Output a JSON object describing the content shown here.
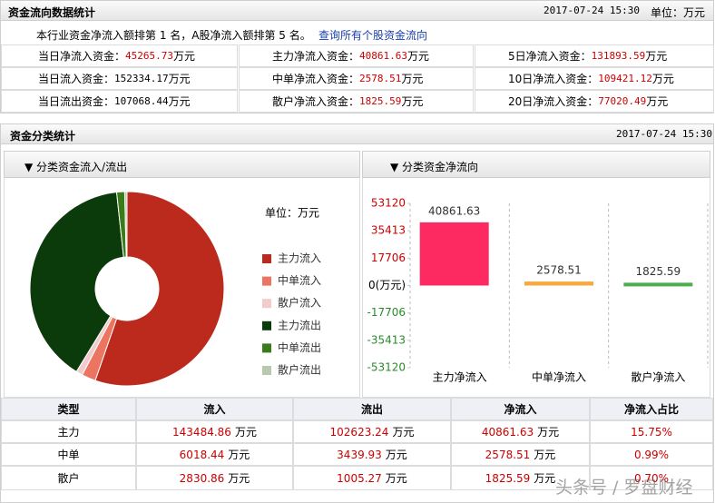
{
  "header": {
    "title": "资金流向数据统计",
    "date": "2017-07-24 15:30",
    "unit": "单位：万元"
  },
  "rank": {
    "text": "本行业资金净流入额排第 1 名，A股净流入额排第 5 名。",
    "link": "查询所有个股资金流向"
  },
  "stats": {
    "unit": "万元",
    "items": [
      {
        "label": "当日净流入资金：",
        "value": "45265.73",
        "color": "#cc0000"
      },
      {
        "label": "主力净流入资金：",
        "value": "40861.63",
        "color": "#cc0000"
      },
      {
        "label": "5日净流入资金：",
        "value": "131893.59",
        "color": "#cc0000"
      },
      {
        "label": "当日流入资金：",
        "value": "152334.17",
        "color": "#000000"
      },
      {
        "label": "中单净流入资金：",
        "value": "2578.51",
        "color": "#cc0000"
      },
      {
        "label": "10日净流入资金：",
        "value": "109421.12",
        "color": "#cc0000"
      },
      {
        "label": "当日流出资金：",
        "value": "107068.44",
        "color": "#000000"
      },
      {
        "label": "散户净流入资金：",
        "value": "1825.59",
        "color": "#cc0000"
      },
      {
        "label": "20日净流入资金：",
        "value": "77020.49",
        "color": "#cc0000"
      }
    ]
  },
  "section": {
    "title": "资金分类统计",
    "date": "2017-07-24 15:30"
  },
  "chart_data": [
    {
      "type": "pie",
      "title": "▼ 分类资金流入/流出",
      "unit_label": "单位：万元",
      "categories": [
        "主力流入",
        "中单流入",
        "散户流入",
        "主力流出",
        "中单流出",
        "散户流出"
      ],
      "values": [
        143484.86,
        6018.44,
        2830.86,
        102623.24,
        3439.93,
        1005.27
      ],
      "colors": [
        "#bb2a1c",
        "#ec7561",
        "#f2cccc",
        "#0b3a0b",
        "#3a7b1a",
        "#b8caae"
      ]
    },
    {
      "type": "bar",
      "title": "▼ 分类资金净流向",
      "categories": [
        "主力净流入",
        "中单净流入",
        "散户净流入"
      ],
      "values": [
        40861.63,
        2578.51,
        1825.59
      ],
      "colors": [
        "#fd2a61",
        "#f6a93c",
        "#4cae4c"
      ],
      "ylim": [
        -53120,
        53120
      ],
      "yticks": [
        53120,
        35413,
        17706,
        {
          "value": 0,
          "label": "0(万元)"
        },
        -17706,
        -35413,
        -53120
      ],
      "grid": true
    }
  ],
  "table": {
    "columns": [
      "类型",
      "流入",
      "流出",
      "净流入",
      "净流入占比"
    ],
    "unit": "万元",
    "rows": [
      [
        "主力",
        "143484.86",
        "102623.24",
        "40861.63",
        "15.75%"
      ],
      [
        "中单",
        "6018.44",
        "3439.93",
        "2578.51",
        "0.99%"
      ],
      [
        "散户",
        "2830.86",
        "1005.27",
        "1825.59",
        "0.70%"
      ]
    ]
  },
  "watermark": "头条号 / 罗盘财经"
}
